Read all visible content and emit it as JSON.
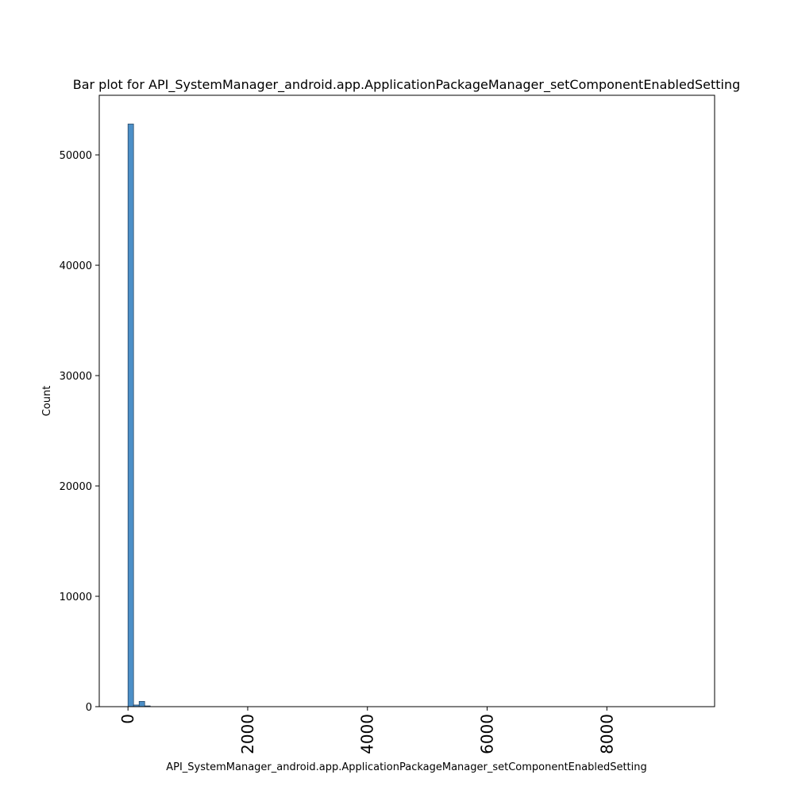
{
  "chart_data": {
    "type": "bar",
    "title": "Bar plot for API_SystemManager_android.app.ApplicationPackageManager_setComponentEnabledSetting",
    "xlabel": "API_SystemManager_android.app.ApplicationPackageManager_setComponentEnabledSetting",
    "ylabel": "Count",
    "xlim": [
      -480,
      9800
    ],
    "ylim": [
      0,
      55400
    ],
    "x_ticks": [
      0,
      2000,
      4000,
      6000,
      8000
    ],
    "x_tick_labels": [
      "0",
      "2000",
      "4000",
      "6000",
      "8000"
    ],
    "y_ticks": [
      0,
      10000,
      20000,
      30000,
      40000,
      50000
    ],
    "y_tick_labels": [
      "0",
      "10000",
      "20000",
      "30000",
      "40000",
      "50000"
    ],
    "bin_width": 93,
    "bins": [
      {
        "x": 0,
        "count": 52800
      },
      {
        "x": 93,
        "count": 150
      },
      {
        "x": 186,
        "count": 480
      },
      {
        "x": 279,
        "count": 70
      },
      {
        "x": 372,
        "count": 10
      }
    ],
    "bar_color": "#4c8fc7",
    "bar_edge_color": "#1f3b57",
    "grid": false
  }
}
